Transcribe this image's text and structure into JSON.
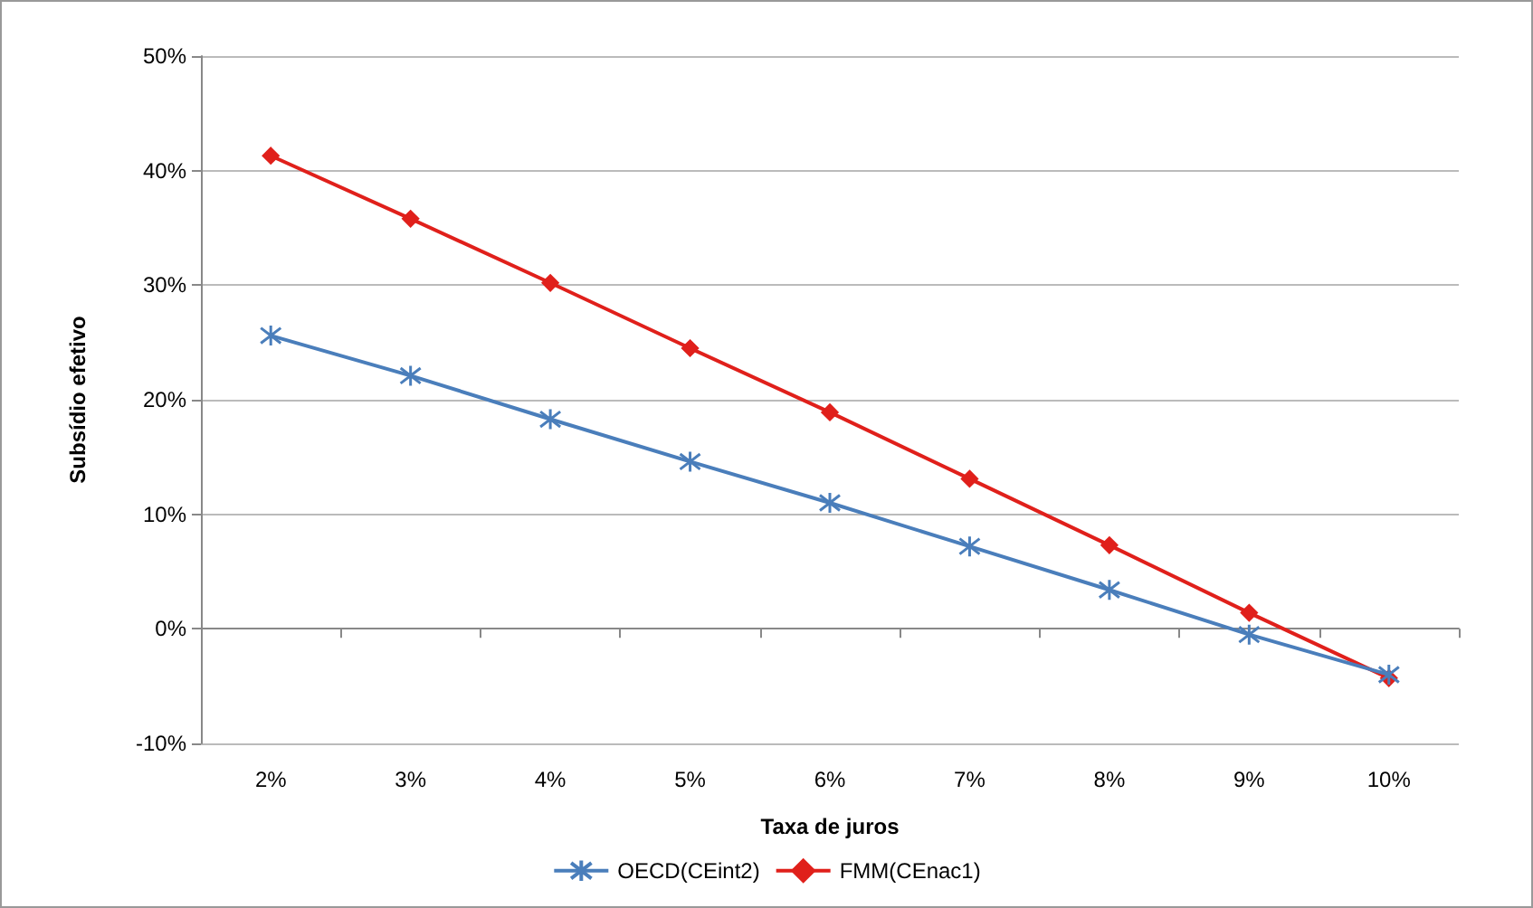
{
  "chart_data": {
    "type": "line",
    "xlabel": "Taxa de juros",
    "ylabel": "Subsídio efetivo",
    "categories": [
      "2%",
      "3%",
      "4%",
      "5%",
      "6%",
      "7%",
      "8%",
      "9%",
      "10%"
    ],
    "series": [
      {
        "name": "OECD(CEint2)",
        "color": "#4a7ebb",
        "marker": "cross",
        "values": [
          25.6,
          22.1,
          18.3,
          14.6,
          11.0,
          7.2,
          3.4,
          -0.5,
          -4.0
        ]
      },
      {
        "name": "FMM(CEnac1)",
        "color": "#e0201b",
        "marker": "diamond",
        "values": [
          41.3,
          35.8,
          30.2,
          24.5,
          18.9,
          13.1,
          7.3,
          1.4,
          -4.3
        ]
      }
    ],
    "ylim": [
      -10,
      50
    ],
    "yticks": [
      {
        "value": -10,
        "label": "-10%"
      },
      {
        "value": 0,
        "label": "0%"
      },
      {
        "value": 10,
        "label": "10%"
      },
      {
        "value": 20,
        "label": "20%"
      },
      {
        "value": 30,
        "label": "30%"
      },
      {
        "value": 40,
        "label": "40%"
      },
      {
        "value": 50,
        "label": "50%"
      }
    ],
    "grid": "y",
    "legend": "bottom",
    "line_style": "solid"
  }
}
